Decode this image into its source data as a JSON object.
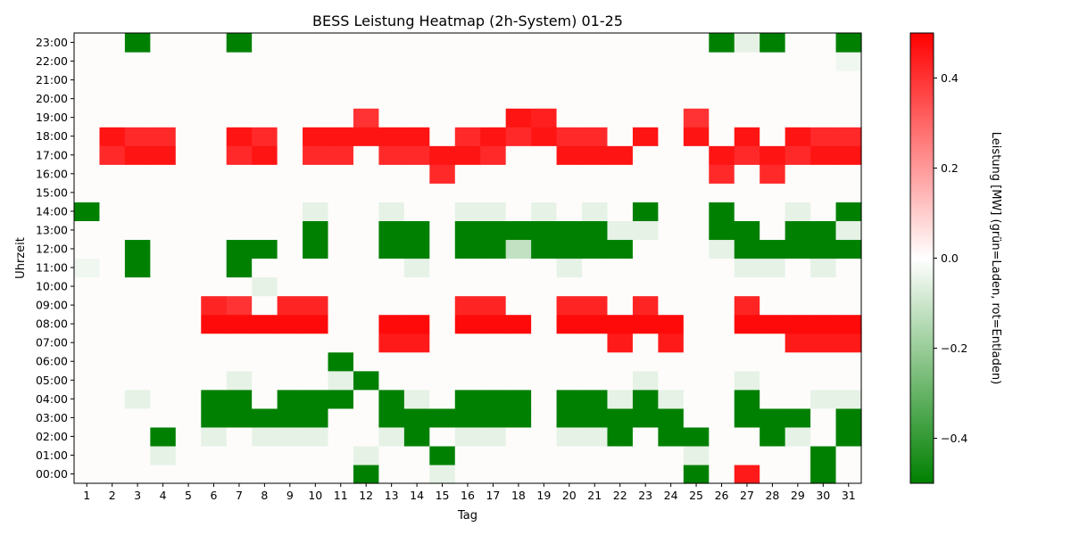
{
  "chart_data": {
    "type": "heatmap",
    "title": "BESS Leistung Heatmap (2h-System) 01-25",
    "xlabel": "Tag",
    "ylabel": "Uhrzeit",
    "x_categories": [
      "1",
      "2",
      "3",
      "4",
      "5",
      "6",
      "7",
      "8",
      "9",
      "10",
      "11",
      "12",
      "13",
      "14",
      "15",
      "16",
      "17",
      "18",
      "19",
      "20",
      "21",
      "22",
      "23",
      "24",
      "25",
      "26",
      "27",
      "28",
      "29",
      "30",
      "31"
    ],
    "y_categories": [
      "00:00",
      "01:00",
      "02:00",
      "03:00",
      "04:00",
      "05:00",
      "06:00",
      "07:00",
      "08:00",
      "09:00",
      "10:00",
      "11:00",
      "12:00",
      "13:00",
      "14:00",
      "15:00",
      "16:00",
      "17:00",
      "18:00",
      "19:00",
      "20:00",
      "21:00",
      "22:00",
      "23:00"
    ],
    "colorbar": {
      "label": "Leistung [MW] (grün=Laden, rot=Entladen)",
      "vmin": -0.5,
      "vmax": 0.5,
      "ticks": [
        -0.4,
        -0.2,
        0.0,
        0.2,
        0.4
      ],
      "tick_labels": [
        "−0.4",
        "−0.2",
        "0.0",
        "0.2",
        "0.4"
      ],
      "colors": [
        "#008000",
        "#ffffff",
        "#ff0000"
      ]
    },
    "values": [
      [
        0,
        0,
        0,
        0,
        0,
        0,
        0,
        0,
        0,
        0,
        0,
        -0.5,
        0,
        0,
        -0.05,
        0,
        0,
        0,
        0,
        0,
        0,
        0,
        0,
        0,
        -0.5,
        0,
        0.45,
        0,
        0,
        -0.5,
        0
      ],
      [
        0,
        0,
        0,
        -0.05,
        0,
        0,
        0,
        0,
        0,
        0,
        0,
        -0.05,
        0,
        0,
        -0.5,
        0,
        0,
        0,
        0,
        0,
        0,
        0,
        0,
        0,
        -0.05,
        0,
        0,
        0,
        0,
        -0.5,
        0
      ],
      [
        0,
        0,
        0,
        -0.5,
        0,
        -0.05,
        0,
        -0.05,
        -0.05,
        -0.05,
        0,
        0,
        -0.05,
        -0.5,
        0,
        -0.05,
        -0.05,
        0,
        0,
        -0.05,
        -0.05,
        -0.5,
        0,
        -0.5,
        -0.5,
        0,
        0,
        -0.5,
        -0.05,
        0,
        -0.5
      ],
      [
        0,
        0,
        0,
        0,
        0,
        -0.5,
        -0.5,
        -0.5,
        -0.5,
        -0.5,
        0,
        0,
        -0.5,
        -0.5,
        -0.5,
        -0.5,
        -0.5,
        -0.5,
        0,
        -0.5,
        -0.5,
        -0.5,
        -0.5,
        -0.5,
        0,
        0,
        -0.5,
        -0.5,
        -0.5,
        0,
        -0.5
      ],
      [
        0,
        0,
        -0.05,
        0,
        0,
        -0.5,
        -0.5,
        0,
        -0.5,
        -0.5,
        -0.5,
        0,
        -0.5,
        -0.05,
        0,
        -0.5,
        -0.5,
        -0.5,
        0,
        -0.5,
        -0.5,
        -0.05,
        -0.5,
        -0.05,
        0,
        0,
        -0.5,
        0,
        0,
        -0.05,
        -0.05
      ],
      [
        0,
        0,
        0,
        0,
        0,
        0,
        -0.05,
        0,
        0,
        0,
        -0.05,
        -0.5,
        0,
        0,
        0,
        0,
        0,
        0,
        0,
        0,
        0,
        0,
        -0.05,
        0,
        0,
        0,
        -0.05,
        0,
        0,
        0,
        0
      ],
      [
        0,
        0,
        0,
        0,
        0,
        0,
        0,
        0,
        0,
        0,
        -0.5,
        0,
        0,
        0,
        0,
        0,
        0,
        0,
        0,
        0,
        0,
        0,
        0,
        0,
        0,
        0,
        0,
        0,
        0,
        0,
        0
      ],
      [
        0,
        0,
        0,
        0,
        0,
        0,
        0,
        0,
        0,
        0,
        0,
        0,
        0.45,
        0.45,
        0,
        0,
        0,
        0,
        0,
        0,
        0,
        0.45,
        0,
        0.45,
        0,
        0,
        0,
        0,
        0.45,
        0.45,
        0.45
      ],
      [
        0,
        0,
        0,
        0,
        0,
        0.48,
        0.48,
        0.48,
        0.48,
        0.48,
        0,
        0,
        0.48,
        0.48,
        0,
        0.48,
        0.48,
        0.48,
        0,
        0.48,
        0.48,
        0.48,
        0.48,
        0.48,
        0,
        0,
        0.48,
        0.48,
        0.48,
        0.48,
        0.48
      ],
      [
        0,
        0,
        0,
        0,
        0,
        0.43,
        0.4,
        0,
        0.43,
        0.43,
        0,
        0,
        0,
        0,
        0,
        0.43,
        0.43,
        0,
        0,
        0.43,
        0.43,
        0,
        0.43,
        0,
        0,
        0,
        0.43,
        0,
        0,
        0,
        0
      ],
      [
        0,
        0,
        0,
        0,
        0,
        0,
        0,
        -0.05,
        0,
        0,
        0,
        0,
        0,
        0,
        0,
        0,
        0,
        0,
        0,
        0,
        0,
        0,
        0,
        0,
        0,
        0,
        0,
        0,
        0,
        0,
        0
      ],
      [
        -0.03,
        0,
        -0.5,
        0,
        0,
        0,
        -0.5,
        0,
        0,
        0,
        0,
        0,
        0,
        -0.05,
        0,
        0,
        0,
        0,
        0,
        -0.05,
        0,
        0,
        0,
        0,
        0,
        0,
        -0.05,
        -0.05,
        0,
        -0.05,
        0
      ],
      [
        0,
        0,
        -0.5,
        0,
        0,
        0,
        -0.5,
        -0.5,
        0,
        -0.5,
        0,
        0,
        -0.5,
        -0.5,
        0,
        -0.5,
        -0.5,
        -0.12,
        -0.5,
        -0.5,
        -0.5,
        -0.5,
        0,
        0,
        0,
        -0.05,
        -0.5,
        -0.5,
        -0.5,
        -0.5,
        -0.5
      ],
      [
        0,
        0,
        0,
        0,
        0,
        0,
        0,
        0,
        0,
        -0.5,
        0,
        0,
        -0.5,
        -0.5,
        0,
        -0.5,
        -0.5,
        -0.5,
        -0.5,
        -0.5,
        -0.5,
        -0.05,
        -0.05,
        0,
        0,
        -0.5,
        -0.5,
        0,
        -0.5,
        -0.5,
        -0.05
      ],
      [
        -0.5,
        0,
        0,
        0,
        0,
        0,
        0,
        0,
        0,
        -0.05,
        0,
        0,
        -0.05,
        0,
        0,
        -0.05,
        -0.05,
        0,
        -0.05,
        0,
        -0.05,
        0,
        -0.5,
        0,
        0,
        -0.5,
        0,
        0,
        -0.05,
        0,
        -0.5
      ],
      [
        0,
        0,
        0,
        0,
        0,
        0,
        0,
        0,
        0,
        0,
        0,
        0,
        0,
        0,
        0,
        0,
        0,
        0,
        0,
        0,
        0,
        0,
        0,
        0,
        0,
        0,
        0,
        0,
        0,
        0,
        0
      ],
      [
        0,
        0,
        0,
        0,
        0,
        0,
        0,
        0,
        0,
        0,
        0,
        0,
        0,
        0,
        0.42,
        0,
        0,
        0,
        0,
        0,
        0,
        0,
        0,
        0,
        0,
        0.42,
        0,
        0.42,
        0,
        0,
        0
      ],
      [
        0,
        0.42,
        0.46,
        0.46,
        0,
        0,
        0.42,
        0.46,
        0,
        0.42,
        0.42,
        0,
        0.42,
        0.42,
        0.46,
        0.46,
        0.42,
        0,
        0,
        0.46,
        0.46,
        0.46,
        0,
        0,
        0,
        0.46,
        0.42,
        0.46,
        0.42,
        0.46,
        0.46
      ],
      [
        0,
        0.46,
        0.42,
        0.42,
        0,
        0,
        0.46,
        0.42,
        0,
        0.46,
        0.46,
        0.46,
        0.46,
        0.46,
        0,
        0.42,
        0.46,
        0.42,
        0.46,
        0.42,
        0.42,
        0,
        0.46,
        0,
        0.46,
        0,
        0.46,
        0,
        0.46,
        0.42,
        0.42
      ],
      [
        0,
        0,
        0,
        0,
        0,
        0,
        0,
        0,
        0,
        0,
        0,
        0.4,
        0,
        0,
        0,
        0,
        0,
        0.46,
        0.44,
        0,
        0,
        0,
        0,
        0,
        0.4,
        0,
        0,
        0,
        0,
        0,
        0
      ],
      [
        0,
        0,
        0,
        0,
        0,
        0,
        0,
        0,
        0,
        0,
        0,
        0,
        0,
        0,
        0,
        0,
        0,
        0,
        0,
        0,
        0,
        0,
        0,
        0,
        0,
        0,
        0,
        0,
        0,
        0,
        0
      ],
      [
        0,
        0,
        0,
        0,
        0,
        0,
        0,
        0,
        0,
        0,
        0,
        0,
        0,
        0,
        0,
        0,
        0,
        0,
        0,
        0,
        0,
        0,
        0,
        0,
        0,
        0,
        0,
        0,
        0,
        0,
        0
      ],
      [
        0,
        0,
        0,
        0,
        0,
        0,
        0,
        0,
        0,
        0,
        0,
        0,
        0,
        0,
        0,
        0,
        0,
        0,
        0,
        0,
        0,
        0,
        0,
        0,
        0,
        0,
        0,
        0,
        0,
        0,
        -0.03
      ],
      [
        0,
        0,
        -0.5,
        0,
        0,
        0,
        -0.5,
        0,
        0,
        0,
        0,
        0,
        0,
        0,
        0,
        0,
        0,
        0,
        0,
        0,
        0,
        0,
        0,
        0,
        0,
        -0.5,
        -0.05,
        -0.5,
        0,
        0,
        -0.5
      ]
    ]
  }
}
